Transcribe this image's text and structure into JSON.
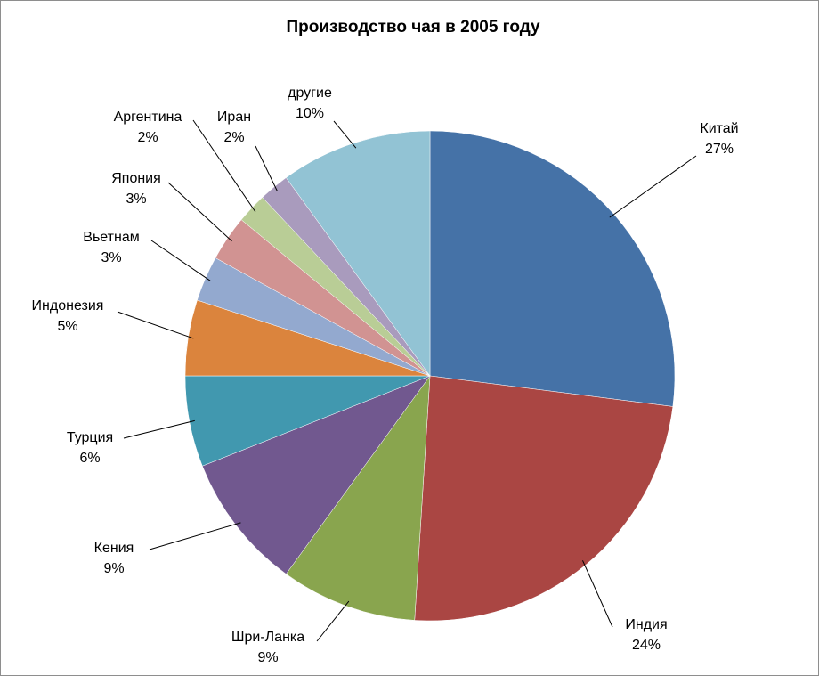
{
  "chart_data": {
    "type": "pie",
    "title": "Производство чая в 2005 году",
    "start_angle_deg": 0,
    "direction": "clockwise",
    "label_format": "category-and-percent",
    "slices": [
      {
        "name": "Китай",
        "value": 27,
        "percent_label": "27%",
        "color": "#4572A7"
      },
      {
        "name": "Индия",
        "value": 24,
        "percent_label": "24%",
        "color": "#AA4643"
      },
      {
        "name": "Шри-Ланка",
        "value": 9,
        "percent_label": "9%",
        "color": "#89A54E"
      },
      {
        "name": "Кения",
        "value": 9,
        "percent_label": "9%",
        "color": "#71588F"
      },
      {
        "name": "Турция",
        "value": 6,
        "percent_label": "6%",
        "color": "#4198AF"
      },
      {
        "name": "Индонезия",
        "value": 5,
        "percent_label": "5%",
        "color": "#DB843D"
      },
      {
        "name": "Вьетнам",
        "value": 3,
        "percent_label": "3%",
        "color": "#93A9CF"
      },
      {
        "name": "Япония",
        "value": 3,
        "percent_label": "3%",
        "color": "#D19392"
      },
      {
        "name": "Аргентина",
        "value": 2,
        "percent_label": "2%",
        "color": "#B9CD96"
      },
      {
        "name": "Иран",
        "value": 2,
        "percent_label": "2%",
        "color": "#A99BBD"
      },
      {
        "name": "другие",
        "value": 10,
        "percent_label": "10%",
        "color": "#92C3D4"
      }
    ]
  }
}
